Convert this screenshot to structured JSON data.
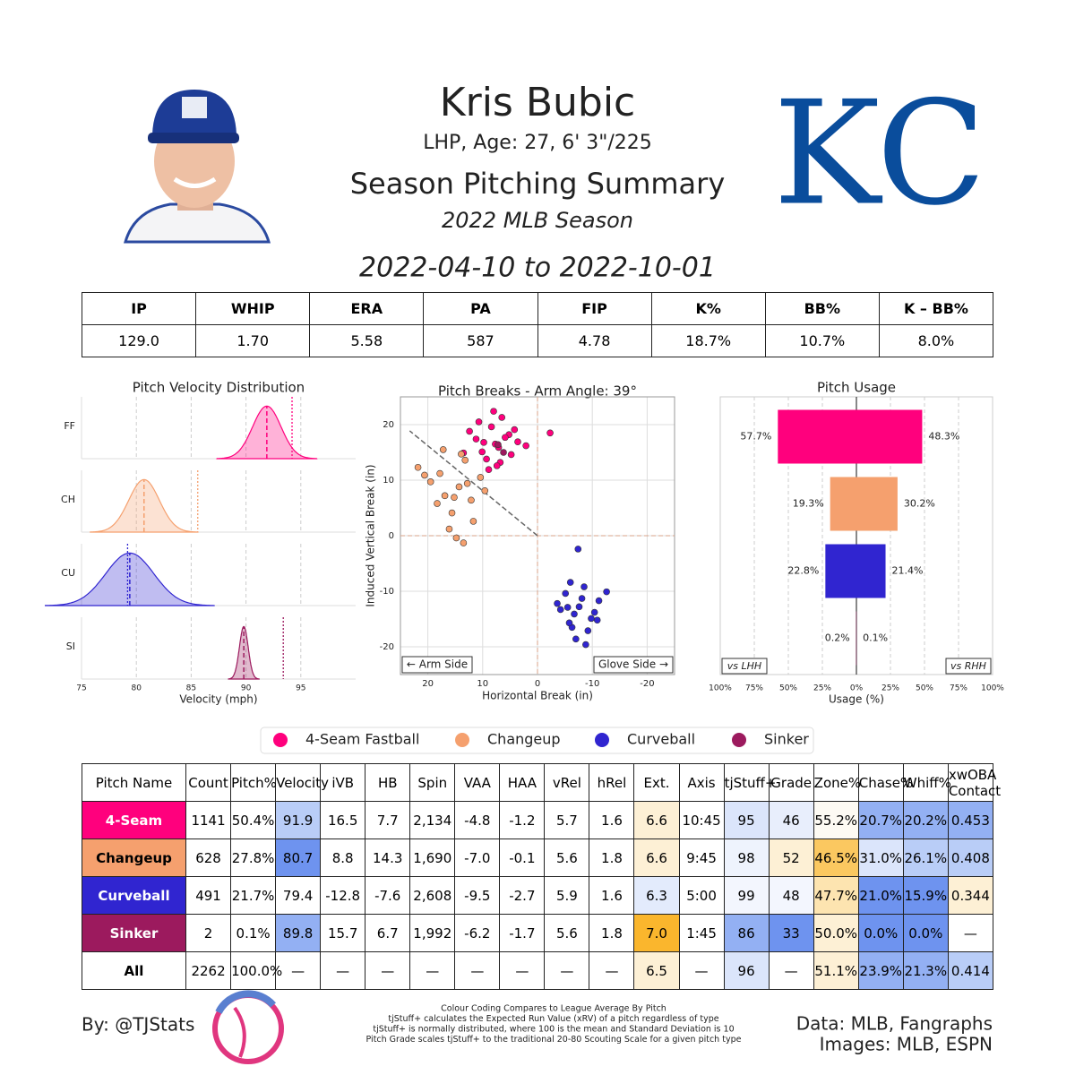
{
  "header": {
    "name": "Kris Bubic",
    "bio": "LHP, Age: 27, 6' 3\"/225",
    "title": "Season Pitching Summary",
    "season": "2022 MLB Season",
    "date_range": "2022-04-10 to 2022-10-01",
    "logo": "KC"
  },
  "summary_table": {
    "headers": [
      "IP",
      "WHIP",
      "ERA",
      "PA",
      "FIP",
      "K%",
      "BB%",
      "K – BB%"
    ],
    "values": [
      "129.0",
      "1.70",
      "5.58",
      "587",
      "4.78",
      "18.7%",
      "10.7%",
      "8.0%"
    ]
  },
  "legend": [
    {
      "name": "4-Seam Fastball",
      "color": "#ff007d"
    },
    {
      "name": "Changeup",
      "color": "#f5a06e"
    },
    {
      "name": "Curveball",
      "color": "#3025d0"
    },
    {
      "name": "Sinker",
      "color": "#9c1a5e"
    }
  ],
  "chart_data": [
    {
      "type": "density",
      "title": "Pitch Velocity Distribution",
      "categories": [
        "FF",
        "CH",
        "CU",
        "SI"
      ],
      "mean": [
        91.9,
        80.7,
        79.4,
        89.8
      ],
      "league_mean": [
        94.2,
        85.6,
        79.2,
        93.4
      ],
      "sd": [
        1.3,
        1.4,
        2.2,
        0.4
      ],
      "xlim": [
        75,
        100
      ],
      "xticks": [
        75,
        80,
        85,
        90,
        95
      ],
      "xlabel": "Velocity (mph)",
      "grid": true
    },
    {
      "type": "scatter",
      "title": "Pitch Breaks - Arm Angle: 39°",
      "arm_angle": 39,
      "xlabel": "Horizontal Break (in)",
      "ylabel": "Induced Vertical Break (in)",
      "xlim": [
        25,
        -25
      ],
      "ylim": [
        -25,
        25
      ],
      "xticks": [
        20,
        10,
        0,
        -10,
        -20
      ],
      "yticks": [
        -20,
        -10,
        0,
        10,
        20
      ],
      "annotations": [
        "← Arm Side",
        "Glove Side →"
      ],
      "grid": true,
      "series": [
        {
          "x": [
            7.7,
            5.2,
            10.1,
            8.4,
            3.6,
            9.3,
            6.5,
            11.2,
            4.8,
            7.1,
            12.4,
            8.9,
            5.9,
            2.1,
            10.7,
            6.8,
            9.8,
            4.2,
            8.0,
            -2.3,
            13.5,
            7.4
          ],
          "y": [
            16.5,
            18.2,
            15.1,
            19.6,
            16.9,
            13.8,
            21.3,
            17.4,
            14.6,
            15.9,
            18.8,
            11.9,
            17.7,
            16.2,
            20.5,
            13.2,
            16.8,
            19.1,
            22.4,
            18.5,
            14.9,
            12.6
          ]
        },
        {
          "x": [
            14.3,
            17.8,
            12.1,
            19.5,
            15.6,
            10.4,
            13.2,
            21.8,
            16.9,
            11.7,
            18.3,
            14.8,
            9.6,
            20.6,
            13.9,
            16.1,
            12.8,
            15.2,
            17.2,
            13.5
          ],
          "y": [
            8.8,
            11.2,
            6.4,
            9.7,
            4.1,
            10.5,
            13.6,
            12.3,
            7.2,
            2.6,
            5.8,
            -0.4,
            8.1,
            10.9,
            14.7,
            1.2,
            9.4,
            6.9,
            15.5,
            -1.3
          ]
        },
        {
          "x": [
            -7.6,
            -5.1,
            -9.8,
            -6.3,
            -11.2,
            -4.2,
            -8.5,
            -7.0,
            -10.4,
            -5.8,
            -12.6,
            -8.1,
            -6.7,
            -3.6,
            -9.2,
            -7.4,
            -6.0,
            -10.9,
            -8.8,
            -5.5
          ],
          "y": [
            -12.8,
            -10.4,
            -14.9,
            -16.5,
            -11.7,
            -13.3,
            -9.2,
            -18.6,
            -13.8,
            -15.7,
            -10.1,
            -11.3,
            -14.1,
            -12.2,
            -17.1,
            -2.4,
            -8.4,
            -15.2,
            -19.6,
            -12.9
          ]
        },
        {
          "x": [
            7.2,
            6.2
          ],
          "y": [
            16.4,
            15.0
          ]
        }
      ]
    },
    {
      "type": "diverging_bar",
      "title": "Pitch Usage",
      "xlabel": "Usage (%)",
      "xlim": [
        -100,
        100
      ],
      "xticks": [
        {
          "value": -100,
          "label": "100%"
        },
        {
          "value": -75,
          "label": "75%"
        },
        {
          "value": -50,
          "label": "50%"
        },
        {
          "value": -25,
          "label": "25%"
        },
        {
          "value": 0,
          "label": "0%"
        },
        {
          "value": 25,
          "label": "25%"
        },
        {
          "value": 50,
          "label": "50%"
        },
        {
          "value": 75,
          "label": "75%"
        },
        {
          "value": 100,
          "label": "100%"
        }
      ],
      "grid": true,
      "series": [
        {
          "name": "vs LHH",
          "values": [
            57.7,
            19.3,
            22.8,
            0.2
          ],
          "value_labels": [
            "57.7%",
            "19.3%",
            "22.8%",
            "0.2%"
          ]
        },
        {
          "name": "vs RHH",
          "values": [
            48.3,
            30.2,
            21.4,
            0.1
          ],
          "value_labels": [
            "48.3%",
            "30.2%",
            "21.4%",
            "0.1%"
          ]
        }
      ]
    }
  ],
  "pitch_table": {
    "headers": [
      "Pitch Name",
      "Count",
      "Pitch%",
      "Velocity",
      "iVB",
      "HB",
      "Spin",
      "VAA",
      "HAA",
      "vRel",
      "hRel",
      "Ext.",
      "Axis",
      "tjStuff+",
      "Grade",
      "Zone%",
      "Chase%",
      "Whiff%",
      "xwOBA Contact"
    ],
    "rows": [
      [
        "4-Seam",
        "1141",
        "50.4%",
        "91.9",
        "16.5",
        "7.7",
        "2,134",
        "-4.8",
        "-1.2",
        "5.7",
        "1.6",
        "6.6",
        "10:45",
        "95",
        "46",
        "55.2%",
        "20.7%",
        "20.2%",
        "0.453"
      ],
      [
        "Changeup",
        "628",
        "27.8%",
        "80.7",
        "8.8",
        "14.3",
        "1,690",
        "-7.0",
        "-0.1",
        "5.6",
        "1.8",
        "6.6",
        "9:45",
        "98",
        "52",
        "46.5%",
        "31.0%",
        "26.1%",
        "0.408"
      ],
      [
        "Curveball",
        "491",
        "21.7%",
        "79.4",
        "-12.8",
        "-7.6",
        "2,608",
        "-9.5",
        "-2.7",
        "5.9",
        "1.6",
        "6.3",
        "5:00",
        "99",
        "48",
        "47.7%",
        "21.0%",
        "15.9%",
        "0.344"
      ],
      [
        "Sinker",
        "2",
        "0.1%",
        "89.8",
        "15.7",
        "6.7",
        "1,992",
        "-6.2",
        "-1.7",
        "5.6",
        "1.8",
        "7.0",
        "1:45",
        "86",
        "33",
        "50.0%",
        "0.0%",
        "0.0%",
        "—"
      ],
      [
        "All",
        "2262",
        "100.0%",
        "—",
        "—",
        "—",
        "—",
        "—",
        "—",
        "—",
        "—",
        "6.5",
        "—",
        "96",
        "—",
        "51.1%",
        "23.9%",
        "21.3%",
        "0.414"
      ]
    ],
    "cell_colors": [
      [
        "#ff007d",
        null,
        null,
        "#b9cdf7",
        null,
        null,
        null,
        null,
        null,
        null,
        null,
        "#fdf0d5",
        null,
        "#dbe5fb",
        "#e8eefc",
        "#fdfaf3",
        "#93b0f3",
        "#93b0f3",
        "#93b0f3"
      ],
      [
        "#f5a06e",
        null,
        null,
        "#6e93ef",
        null,
        null,
        null,
        null,
        null,
        null,
        null,
        "#fdf0d5",
        null,
        "#eef3fd",
        "#fdf0d5",
        "#fbc860",
        "#dbe5fb",
        "#b9cdf7",
        "#b9cdf7"
      ],
      [
        "#3025d0",
        null,
        null,
        null,
        null,
        null,
        null,
        null,
        null,
        null,
        null,
        "#e3ebfc",
        null,
        "#f3f6fe",
        "#f3f6fe",
        "#fde4b0",
        "#6e93ef",
        "#6e93ef",
        "#fdf0d5"
      ],
      [
        "#9c1a5e",
        null,
        null,
        "#93b0f3",
        null,
        null,
        null,
        null,
        null,
        null,
        null,
        "#fab62d",
        null,
        "#93b0f3",
        "#6e93ef",
        "#fdf0d5",
        "#6e93ef",
        "#6e93ef",
        null
      ],
      [
        null,
        null,
        null,
        null,
        null,
        null,
        null,
        null,
        null,
        null,
        null,
        "#fdf0d5",
        null,
        "#dbe5fb",
        null,
        "#fdf0d5",
        "#93b0f3",
        "#93b0f3",
        "#b9cdf7"
      ]
    ]
  },
  "footer": {
    "credit": "By: @TJStats",
    "notes": [
      "Colour Coding Compares to League Average By Pitch",
      "tjStuff+ calculates the Expected Run Value (xRV) of a pitch regardless of type",
      "tjStuff+ is normally distributed, where 100 is the mean and Standard Deviation is 10",
      "Pitch Grade scales tjStuff+ to the traditional 20-80 Scouting Scale for a given pitch type"
    ],
    "sources": [
      "Data: MLB, Fangraphs",
      "Images: MLB, ESPN"
    ]
  }
}
